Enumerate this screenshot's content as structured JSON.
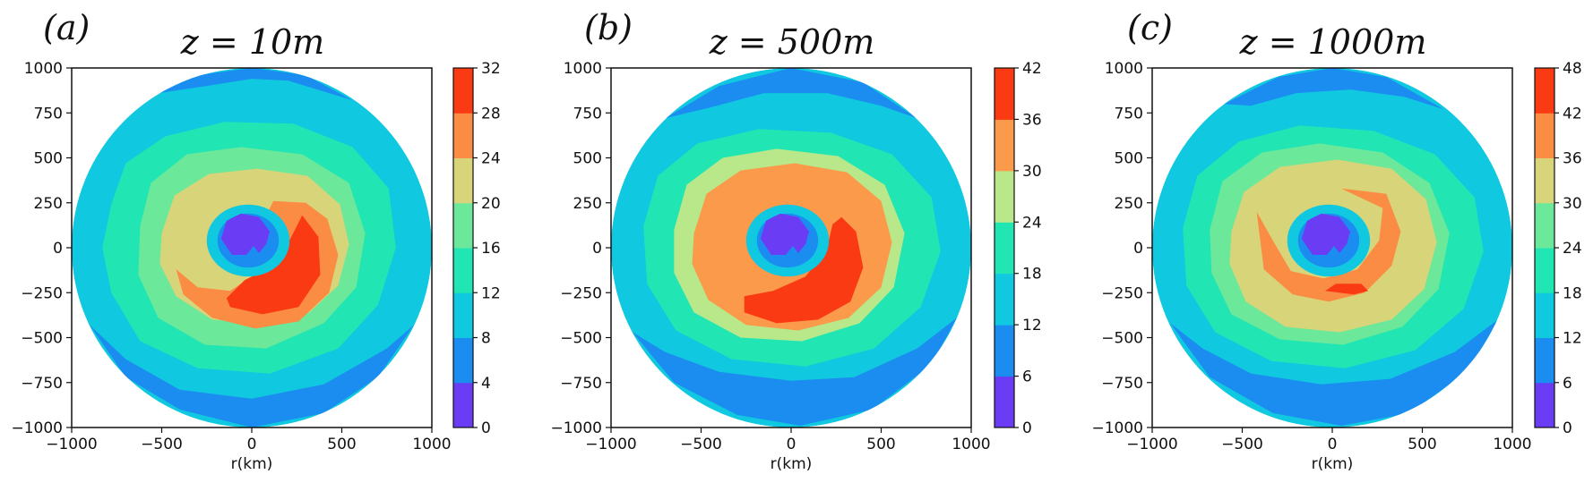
{
  "figure": {
    "panels": [
      "(a)",
      "(b)",
      "(c)"
    ]
  },
  "chart_data": [
    {
      "type": "contourf",
      "panel_label": "(a)",
      "title": "z = 10m",
      "xlabel": "r(km)",
      "ylabel": "",
      "xlim": [
        -1000,
        1000
      ],
      "ylim": [
        -1000,
        1000
      ],
      "x_ticks": [
        "−1000",
        "−500",
        "0",
        "500",
        "1000"
      ],
      "y_ticks": [
        "1000",
        "750",
        "500",
        "250",
        "0",
        "−250",
        "−500",
        "−750",
        "−1000"
      ],
      "colorbar_ticks": [
        "32",
        "28",
        "24",
        "20",
        "16",
        "12",
        "8",
        "4",
        "0"
      ],
      "levels": [
        0,
        4,
        8,
        12,
        16,
        20,
        24,
        28,
        32
      ],
      "colors": [
        "#6a3df5",
        "#1b8cf0",
        "#10c8df",
        "#21e6b4",
        "#6be89a",
        "#d8d47a",
        "#fb8c44",
        "#fa3a12"
      ],
      "annotations": {
        "max_band": "28-32 in southeast sector",
        "min_band": "0-4 at center"
      }
    },
    {
      "type": "contourf",
      "panel_label": "(b)",
      "title": "z = 500m",
      "xlabel": "r(km)",
      "ylabel": "",
      "xlim": [
        -1000,
        1000
      ],
      "ylim": [
        -1000,
        1000
      ],
      "x_ticks": [
        "−1000",
        "−500",
        "0",
        "500",
        "1000"
      ],
      "y_ticks": [
        "1000",
        "750",
        "500",
        "250",
        "0",
        "−250",
        "−500",
        "−750",
        "−1000"
      ],
      "colorbar_ticks": [
        "42",
        "36",
        "30",
        "24",
        "18",
        "12",
        "6",
        "0"
      ],
      "levels": [
        0,
        6,
        12,
        18,
        24,
        30,
        36,
        42
      ],
      "colors": [
        "#6a3df5",
        "#1b8cf0",
        "#10c8df",
        "#21e6b4",
        "#b8e88a",
        "#fb9a4a",
        "#fa3a12"
      ],
      "annotations": {
        "max_band": "36-42 in southeast sector",
        "min_band": "0-6 at center"
      }
    },
    {
      "type": "contourf",
      "panel_label": "(c)",
      "title": "z = 1000m",
      "xlabel": "r(km)",
      "ylabel": "",
      "xlim": [
        -1000,
        1000
      ],
      "ylim": [
        -1000,
        1000
      ],
      "x_ticks": [
        "−1000",
        "−500",
        "0",
        "500",
        "1000"
      ],
      "y_ticks": [
        "1000",
        "750",
        "500",
        "250",
        "0",
        "−250",
        "−500",
        "−750",
        "−1000"
      ],
      "colorbar_ticks": [
        "48",
        "42",
        "36",
        "30",
        "24",
        "18",
        "12",
        "6",
        "0"
      ],
      "levels": [
        0,
        6,
        12,
        18,
        24,
        30,
        36,
        42,
        48
      ],
      "colors": [
        "#6a3df5",
        "#1b8cf0",
        "#10c8df",
        "#21e6b4",
        "#6be89a",
        "#d8d47a",
        "#fb8c44",
        "#fa3a12"
      ],
      "annotations": {
        "max_band": "42-48 small patch south-east",
        "min_band": "0-6 at center"
      }
    }
  ]
}
